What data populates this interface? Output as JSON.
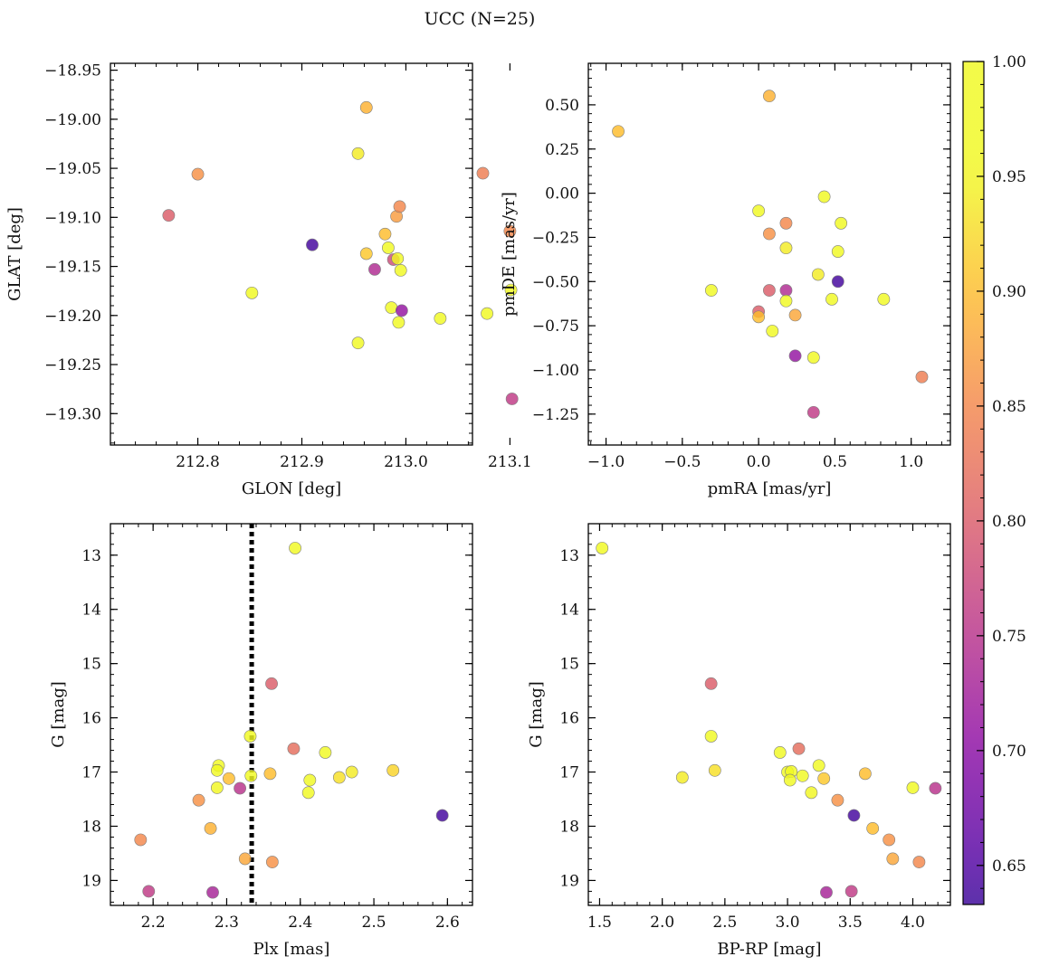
{
  "figure": {
    "title": "UCC (N=25)",
    "colorbar": {
      "range": [
        0.633,
        1.0
      ],
      "ticks": [
        0.65,
        0.7,
        0.75,
        0.8,
        0.85,
        0.9,
        0.95,
        1.0
      ],
      "tick_labels": [
        "0.65",
        "0.70",
        "0.75",
        "0.80",
        "0.85",
        "0.90",
        "0.95",
        "1.00"
      ],
      "colormap": "plasma"
    },
    "colors": {
      "marker_edge": "#7f7f7f",
      "vline": "#000000"
    }
  },
  "chart_data": [
    {
      "id": "glon-glat",
      "type": "scatter",
      "xlabel": "GLON [deg]",
      "ylabel": "GLAT [deg]",
      "xlim": [
        212.716,
        213.064
      ],
      "ylim": [
        -19.332,
        -18.943
      ],
      "xticks": [
        212.8,
        212.9,
        213.0,
        213.1
      ],
      "xtick_labels": [
        "212.8",
        "212.9",
        "213.0",
        "213.1"
      ],
      "yticks": [
        -19.3,
        -19.25,
        -19.2,
        -19.15,
        -19.1,
        -19.05,
        -19.0,
        -18.95
      ],
      "ytick_labels": [
        "−19.30",
        "−19.25",
        "−19.20",
        "−19.15",
        "−19.10",
        "−19.05",
        "−19.00",
        "−18.95"
      ],
      "points": [
        {
          "x": 212.962,
          "y": -18.988,
          "c": 0.89
        },
        {
          "x": 212.954,
          "y": -19.035,
          "c": 0.94
        },
        {
          "x": 212.8,
          "y": -19.056,
          "c": 0.86
        },
        {
          "x": 213.074,
          "y": -19.055,
          "c": 0.84
        },
        {
          "x": 212.772,
          "y": -19.098,
          "c": 0.8
        },
        {
          "x": 212.991,
          "y": -19.099,
          "c": 0.87
        },
        {
          "x": 212.994,
          "y": -19.089,
          "c": 0.85
        },
        {
          "x": 213.1,
          "y": -19.114,
          "c": 0.85
        },
        {
          "x": 212.98,
          "y": -19.117,
          "c": 0.9
        },
        {
          "x": 212.91,
          "y": -19.128,
          "c": 0.64
        },
        {
          "x": 212.983,
          "y": -19.131,
          "c": 0.97
        },
        {
          "x": 212.962,
          "y": -19.137,
          "c": 0.91
        },
        {
          "x": 212.988,
          "y": -19.143,
          "c": 0.78
        },
        {
          "x": 212.992,
          "y": -19.142,
          "c": 0.98
        },
        {
          "x": 212.995,
          "y": -19.154,
          "c": 0.96
        },
        {
          "x": 212.97,
          "y": -19.153,
          "c": 0.74
        },
        {
          "x": 212.852,
          "y": -19.177,
          "c": 0.97
        },
        {
          "x": 213.101,
          "y": -19.174,
          "c": 0.98
        },
        {
          "x": 212.986,
          "y": -19.192,
          "c": 0.98
        },
        {
          "x": 212.996,
          "y": -19.195,
          "c": 0.71
        },
        {
          "x": 213.078,
          "y": -19.198,
          "c": 0.98
        },
        {
          "x": 213.033,
          "y": -19.203,
          "c": 0.96
        },
        {
          "x": 212.993,
          "y": -19.207,
          "c": 0.98
        },
        {
          "x": 212.954,
          "y": -19.228,
          "c": 0.98
        },
        {
          "x": 213.102,
          "y": -19.285,
          "c": 0.76
        }
      ]
    },
    {
      "id": "pm",
      "type": "scatter",
      "xlabel": "pmRA [mas/yr]",
      "ylabel": "pmDE [mas/yr]",
      "xlim": [
        -1.116,
        1.257
      ],
      "ylim": [
        -1.425,
        0.735
      ],
      "xticks": [
        -1.0,
        -0.5,
        0.0,
        0.5,
        1.0
      ],
      "xtick_labels": [
        "−1.0",
        "−0.5",
        "0.0",
        "0.5",
        "1.0"
      ],
      "yticks": [
        -1.25,
        -1.0,
        -0.75,
        -0.5,
        -0.25,
        0.0,
        0.25,
        0.5
      ],
      "ytick_labels": [
        "−1.25",
        "−1.00",
        "−0.75",
        "−0.50",
        "−0.25",
        "0.00",
        "0.25",
        "0.50"
      ],
      "points": [
        {
          "x": 0.07,
          "y": 0.55,
          "c": 0.89
        },
        {
          "x": -0.92,
          "y": 0.35,
          "c": 0.9
        },
        {
          "x": 0.43,
          "y": -0.02,
          "c": 0.98
        },
        {
          "x": 0.0,
          "y": -0.1,
          "c": 0.97
        },
        {
          "x": 0.54,
          "y": -0.17,
          "c": 0.98
        },
        {
          "x": 0.18,
          "y": -0.17,
          "c": 0.85
        },
        {
          "x": 0.07,
          "y": -0.23,
          "c": 0.86
        },
        {
          "x": 0.18,
          "y": -0.31,
          "c": 0.94
        },
        {
          "x": 0.52,
          "y": -0.33,
          "c": 0.96
        },
        {
          "x": 0.39,
          "y": -0.46,
          "c": 0.94
        },
        {
          "x": 0.52,
          "y": -0.5,
          "c": 0.64
        },
        {
          "x": -0.31,
          "y": -0.55,
          "c": 0.98
        },
        {
          "x": 0.07,
          "y": -0.55,
          "c": 0.8
        },
        {
          "x": 0.18,
          "y": -0.55,
          "c": 0.74
        },
        {
          "x": 0.48,
          "y": -0.6,
          "c": 0.98
        },
        {
          "x": 0.82,
          "y": -0.6,
          "c": 0.97
        },
        {
          "x": 0.18,
          "y": -0.61,
          "c": 0.98
        },
        {
          "x": 0.0,
          "y": -0.67,
          "c": 0.8
        },
        {
          "x": 0.24,
          "y": -0.69,
          "c": 0.88
        },
        {
          "x": 0.0,
          "y": -0.7,
          "c": 0.9
        },
        {
          "x": 0.09,
          "y": -0.78,
          "c": 0.98
        },
        {
          "x": 0.24,
          "y": -0.92,
          "c": 0.71
        },
        {
          "x": 0.36,
          "y": -0.93,
          "c": 0.98
        },
        {
          "x": 1.07,
          "y": -1.04,
          "c": 0.84
        },
        {
          "x": 0.36,
          "y": -1.24,
          "c": 0.76
        }
      ]
    },
    {
      "id": "plx-g",
      "type": "scatter",
      "xlabel": "Plx [mas]",
      "ylabel": "G [mag]",
      "xlim": [
        2.142,
        2.634
      ],
      "ylim": [
        19.46,
        12.42
      ],
      "vline": 2.334,
      "xticks": [
        2.2,
        2.3,
        2.4,
        2.5,
        2.6
      ],
      "xtick_labels": [
        "2.2",
        "2.3",
        "2.4",
        "2.5",
        "2.6"
      ],
      "yticks": [
        13,
        14,
        15,
        16,
        17,
        18,
        19
      ],
      "ytick_labels": [
        "13",
        "14",
        "15",
        "16",
        "17",
        "18",
        "19"
      ],
      "points": [
        {
          "x": 2.393,
          "y": 12.87,
          "c": 0.98
        },
        {
          "x": 2.361,
          "y": 15.37,
          "c": 0.8
        },
        {
          "x": 2.332,
          "y": 16.34,
          "c": 0.99
        },
        {
          "x": 2.391,
          "y": 16.57,
          "c": 0.82
        },
        {
          "x": 2.434,
          "y": 16.64,
          "c": 0.97
        },
        {
          "x": 2.289,
          "y": 16.88,
          "c": 0.98
        },
        {
          "x": 2.287,
          "y": 16.97,
          "c": 0.97
        },
        {
          "x": 2.526,
          "y": 16.97,
          "c": 0.92
        },
        {
          "x": 2.47,
          "y": 17.0,
          "c": 0.94
        },
        {
          "x": 2.359,
          "y": 17.03,
          "c": 0.9
        },
        {
          "x": 2.333,
          "y": 17.07,
          "c": 0.98
        },
        {
          "x": 2.453,
          "y": 17.1,
          "c": 0.93
        },
        {
          "x": 2.303,
          "y": 17.12,
          "c": 0.9
        },
        {
          "x": 2.413,
          "y": 17.15,
          "c": 0.96
        },
        {
          "x": 2.318,
          "y": 17.3,
          "c": 0.75
        },
        {
          "x": 2.287,
          "y": 17.29,
          "c": 0.95
        },
        {
          "x": 2.411,
          "y": 17.38,
          "c": 0.96
        },
        {
          "x": 2.262,
          "y": 17.52,
          "c": 0.86
        },
        {
          "x": 2.593,
          "y": 17.8,
          "c": 0.64
        },
        {
          "x": 2.278,
          "y": 18.04,
          "c": 0.89
        },
        {
          "x": 2.183,
          "y": 18.25,
          "c": 0.85
        },
        {
          "x": 2.325,
          "y": 18.6,
          "c": 0.88
        },
        {
          "x": 2.362,
          "y": 18.66,
          "c": 0.86
        },
        {
          "x": 2.194,
          "y": 19.2,
          "c": 0.76
        },
        {
          "x": 2.281,
          "y": 19.22,
          "c": 0.73
        }
      ]
    },
    {
      "id": "cmd",
      "type": "scatter",
      "xlabel": "BP-RP [mag]",
      "ylabel": "G [mag]",
      "xlim": [
        1.41,
        4.3
      ],
      "ylim": [
        19.46,
        12.42
      ],
      "xticks": [
        1.5,
        2.0,
        2.5,
        3.0,
        3.5,
        4.0
      ],
      "xtick_labels": [
        "1.5",
        "2.0",
        "2.5",
        "3.0",
        "3.5",
        "4.0"
      ],
      "yticks": [
        13,
        14,
        15,
        16,
        17,
        18,
        19
      ],
      "ytick_labels": [
        "13",
        "14",
        "15",
        "16",
        "17",
        "18",
        "19"
      ],
      "points": [
        {
          "x": 1.52,
          "y": 12.87,
          "c": 0.98
        },
        {
          "x": 2.39,
          "y": 15.37,
          "c": 0.8
        },
        {
          "x": 2.39,
          "y": 16.34,
          "c": 0.98
        },
        {
          "x": 3.09,
          "y": 16.57,
          "c": 0.82
        },
        {
          "x": 2.94,
          "y": 16.64,
          "c": 0.97
        },
        {
          "x": 3.25,
          "y": 16.88,
          "c": 0.98
        },
        {
          "x": 2.42,
          "y": 16.97,
          "c": 0.93
        },
        {
          "x": 3.0,
          "y": 17.0,
          "c": 0.96
        },
        {
          "x": 3.03,
          "y": 16.99,
          "c": 0.98
        },
        {
          "x": 3.62,
          "y": 17.03,
          "c": 0.9
        },
        {
          "x": 3.12,
          "y": 17.07,
          "c": 0.98
        },
        {
          "x": 2.16,
          "y": 17.1,
          "c": 0.94
        },
        {
          "x": 3.29,
          "y": 17.12,
          "c": 0.91
        },
        {
          "x": 3.02,
          "y": 17.15,
          "c": 0.96
        },
        {
          "x": 4.0,
          "y": 17.29,
          "c": 0.97
        },
        {
          "x": 4.18,
          "y": 17.3,
          "c": 0.75
        },
        {
          "x": 3.19,
          "y": 17.38,
          "c": 0.95
        },
        {
          "x": 3.4,
          "y": 17.52,
          "c": 0.86
        },
        {
          "x": 3.53,
          "y": 17.8,
          "c": 0.64
        },
        {
          "x": 3.68,
          "y": 18.04,
          "c": 0.9
        },
        {
          "x": 3.81,
          "y": 18.25,
          "c": 0.86
        },
        {
          "x": 3.84,
          "y": 18.6,
          "c": 0.88
        },
        {
          "x": 4.05,
          "y": 18.66,
          "c": 0.85
        },
        {
          "x": 3.31,
          "y": 19.22,
          "c": 0.73
        },
        {
          "x": 3.51,
          "y": 19.2,
          "c": 0.76
        }
      ]
    }
  ]
}
